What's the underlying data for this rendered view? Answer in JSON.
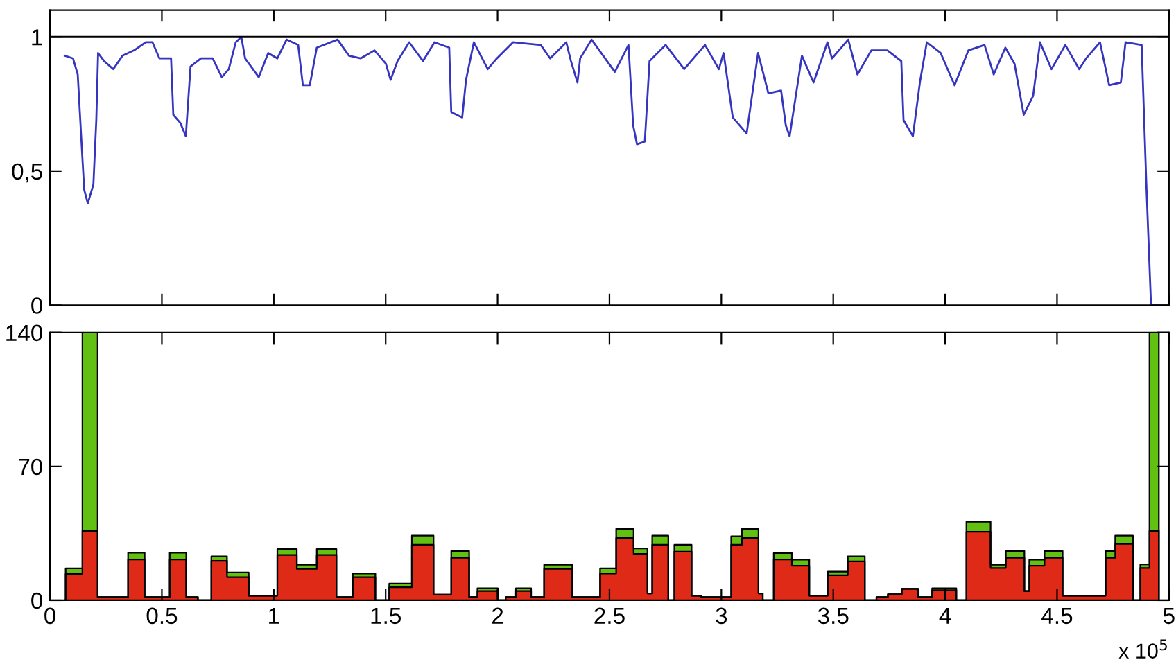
{
  "chart_data": [
    {
      "type": "line",
      "xlim": [
        0,
        5
      ],
      "xticks": [
        0,
        0.5,
        1,
        1.5,
        2,
        2.5,
        3,
        3.5,
        4,
        4.5,
        5
      ],
      "ylim": [
        0,
        1.1
      ],
      "yticks": [
        0,
        {
          "value": 0.5,
          "label": "0,5"
        },
        1
      ],
      "tick_labels": "y",
      "grid": false,
      "legend": false,
      "ref_lines": [
        {
          "axis": "y",
          "value": 1,
          "color": "#000000"
        }
      ],
      "series": [
        {
          "color": "#3535c0",
          "x": [
            0.066,
            0.103,
            0.124,
            0.138,
            0.153,
            0.169,
            0.194,
            0.207,
            0.215,
            0.242,
            0.283,
            0.324,
            0.376,
            0.428,
            0.458,
            0.489,
            0.541,
            0.551,
            0.582,
            0.607,
            0.628,
            0.675,
            0.727,
            0.768,
            0.799,
            0.83,
            0.855,
            0.872,
            0.933,
            0.975,
            1.016,
            1.057,
            1.109,
            1.13,
            1.161,
            1.192,
            1.285,
            1.336,
            1.388,
            1.45,
            1.501,
            1.522,
            1.553,
            1.605,
            1.667,
            1.718,
            1.784,
            1.793,
            1.842,
            1.859,
            1.894,
            1.956,
            1.997,
            2.069,
            2.193,
            2.235,
            2.307,
            2.328,
            2.357,
            2.369,
            2.42,
            2.524,
            2.585,
            2.606,
            2.623,
            2.658,
            2.679,
            2.751,
            2.834,
            2.927,
            2.989,
            3.01,
            3.051,
            3.113,
            3.164,
            3.21,
            3.267,
            3.288,
            3.305,
            3.36,
            3.412,
            3.474,
            3.494,
            3.567,
            3.608,
            3.67,
            3.742,
            3.804,
            3.814,
            3.856,
            3.887,
            3.918,
            3.98,
            4.042,
            4.104,
            4.176,
            4.217,
            4.269,
            4.31,
            4.351,
            4.393,
            4.424,
            4.475,
            4.537,
            4.599,
            4.63,
            4.692,
            4.733,
            4.785,
            4.806,
            4.878,
            4.899,
            4.92,
            4.957
          ],
          "values": [
            0.93,
            0.92,
            0.86,
            0.65,
            0.43,
            0.38,
            0.45,
            0.69,
            0.94,
            0.91,
            0.88,
            0.93,
            0.95,
            0.98,
            0.98,
            0.92,
            0.92,
            0.71,
            0.68,
            0.63,
            0.89,
            0.92,
            0.92,
            0.85,
            0.88,
            0.98,
            1.0,
            0.92,
            0.85,
            0.94,
            0.92,
            0.99,
            0.97,
            0.82,
            0.82,
            0.96,
            0.99,
            0.93,
            0.92,
            0.95,
            0.9,
            0.84,
            0.91,
            0.98,
            0.91,
            0.98,
            0.96,
            0.72,
            0.7,
            0.84,
            0.98,
            0.88,
            0.92,
            0.98,
            0.97,
            0.92,
            0.98,
            0.91,
            0.83,
            0.92,
            0.99,
            0.87,
            0.97,
            0.67,
            0.6,
            0.61,
            0.91,
            0.97,
            0.88,
            0.97,
            0.88,
            0.94,
            0.7,
            0.64,
            0.94,
            0.79,
            0.8,
            0.67,
            0.63,
            0.93,
            0.83,
            0.98,
            0.92,
            0.99,
            0.86,
            0.95,
            0.95,
            0.91,
            0.69,
            0.63,
            0.83,
            0.98,
            0.94,
            0.82,
            0.95,
            0.97,
            0.86,
            0.96,
            0.9,
            0.71,
            0.78,
            0.98,
            0.88,
            0.97,
            0.88,
            0.92,
            0.98,
            0.82,
            0.83,
            0.98,
            0.97,
            0.45,
            0.0,
            0.0
          ]
        }
      ]
    },
    {
      "type": "area",
      "stacked": true,
      "xlim": [
        0,
        5
      ],
      "xticks": [
        0,
        0.5,
        1,
        1.5,
        2,
        2.5,
        3,
        3.5,
        4,
        4.5,
        5
      ],
      "ylim": [
        0,
        140
      ],
      "yticks": [
        0,
        70,
        140
      ],
      "grid": false,
      "legend": false,
      "annotations": [
        "x 10$^{5}$"
      ],
      "x": [
        0.066,
        0.07,
        0.07,
        0.145,
        0.145,
        0.213,
        0.213,
        0.349,
        0.349,
        0.423,
        0.423,
        0.535,
        0.535,
        0.609,
        0.609,
        0.661,
        0.661,
        0.721,
        0.721,
        0.791,
        0.791,
        0.888,
        0.888,
        1.016,
        1.016,
        1.103,
        1.103,
        1.192,
        1.192,
        1.28,
        1.28,
        1.353,
        1.353,
        1.454,
        1.454,
        1.516,
        1.516,
        1.617,
        1.617,
        1.714,
        1.714,
        1.793,
        1.793,
        1.873,
        1.873,
        1.91,
        1.91,
        2.001,
        2.001,
        2.036,
        2.036,
        2.082,
        2.082,
        2.15,
        2.15,
        2.208,
        2.208,
        2.334,
        2.334,
        2.458,
        2.458,
        2.53,
        2.53,
        2.608,
        2.608,
        2.67,
        2.67,
        2.691,
        2.691,
        2.763,
        2.763,
        2.79,
        2.79,
        2.867,
        2.867,
        2.91,
        2.91,
        3.044,
        3.044,
        3.092,
        3.092,
        3.166,
        3.166,
        3.185,
        3.185,
        3.234,
        3.234,
        3.315,
        3.315,
        3.393,
        3.393,
        3.476,
        3.476,
        3.565,
        3.565,
        3.641,
        3.641,
        3.693,
        3.693,
        3.744,
        3.744,
        3.806,
        3.806,
        3.879,
        3.879,
        3.942,
        3.942,
        4.05,
        4.05,
        4.095,
        4.095,
        4.203,
        4.203,
        4.271,
        4.271,
        4.354,
        4.354,
        4.376,
        4.376,
        4.444,
        4.444,
        4.525,
        4.525,
        4.717,
        4.717,
        4.76,
        4.76,
        4.839,
        4.839,
        4.872,
        4.872,
        4.913,
        4.913,
        4.955,
        4.955
      ],
      "series": [
        {
          "color": "#e02a18",
          "values": [
            0,
            0,
            13.8,
            13.8,
            36.3,
            36.3,
            1.7,
            1.7,
            21.3,
            21.3,
            1.7,
            1.7,
            21.3,
            21.3,
            1.7,
            1.7,
            0,
            0,
            20.6,
            20.6,
            12.1,
            12.1,
            2.4,
            2.4,
            23.7,
            23.7,
            16.4,
            16.4,
            23.7,
            23.7,
            1.7,
            1.7,
            12.1,
            12.1,
            0,
            0,
            6.8,
            6.8,
            29,
            29,
            2.9,
            2.9,
            22.2,
            22.2,
            1.7,
            1.7,
            4.8,
            4.8,
            0,
            0,
            1.7,
            1.7,
            4.8,
            4.8,
            1.7,
            1.7,
            16.4,
            16.4,
            1.7,
            1.7,
            14,
            14,
            32.6,
            32.6,
            24.2,
            24.2,
            3.6,
            3.6,
            29,
            29,
            0,
            0,
            25.4,
            25.4,
            2.4,
            2.4,
            1.7,
            1.7,
            29,
            29,
            32.6,
            32.6,
            3.6,
            3.6,
            0,
            0,
            21.3,
            21.3,
            18.1,
            18.1,
            2.4,
            2.4,
            13.1,
            13.1,
            20.3,
            20.3,
            0,
            0,
            1.7,
            1.7,
            3.1,
            3.1,
            6,
            6,
            1.7,
            1.7,
            5.3,
            5.3,
            0,
            0,
            35.8,
            35.8,
            16.9,
            16.9,
            22.2,
            22.2,
            4.8,
            4.8,
            18.1,
            18.1,
            22.2,
            22.2,
            2.4,
            2.4,
            22.2,
            22.2,
            29.5,
            29.5,
            0,
            0,
            16.9,
            16.9,
            36.3,
            36.3,
            0
          ]
        },
        {
          "color": "#62c012",
          "values": [
            0,
            0,
            2.9,
            2.9,
            103.7,
            103.7,
            0,
            0,
            3.6,
            3.6,
            0,
            0,
            3.6,
            3.6,
            0,
            0,
            0,
            0,
            2.4,
            2.4,
            2.4,
            2.4,
            0,
            0,
            3.1,
            3.1,
            2.2,
            2.2,
            3.1,
            3.1,
            0,
            0,
            1.9,
            1.9,
            0,
            0,
            1.9,
            1.9,
            4.8,
            4.8,
            0,
            0,
            3.6,
            3.6,
            0,
            0,
            1.5,
            1.5,
            0,
            0,
            0,
            0,
            1.5,
            1.5,
            0,
            0,
            2.2,
            2.2,
            0,
            0,
            2.7,
            2.7,
            4.8,
            4.8,
            2.9,
            2.9,
            0,
            0,
            4.8,
            4.8,
            0,
            0,
            3.6,
            3.6,
            0,
            0,
            0,
            0,
            4.5,
            4.5,
            4.8,
            4.8,
            0,
            0,
            0,
            0,
            3.4,
            3.4,
            3.1,
            3.1,
            0,
            0,
            1.9,
            1.9,
            2.7,
            2.7,
            0,
            0,
            0,
            0,
            0,
            0,
            0,
            0,
            0,
            0,
            1,
            1,
            0,
            0,
            5.3,
            5.3,
            1.7,
            1.7,
            3.6,
            3.6,
            0,
            0,
            3.1,
            3.1,
            3.6,
            3.6,
            0,
            0,
            3.6,
            3.6,
            4.3,
            4.3,
            0,
            0,
            1.9,
            1.9,
            103.7,
            103.7,
            0
          ]
        }
      ]
    }
  ]
}
